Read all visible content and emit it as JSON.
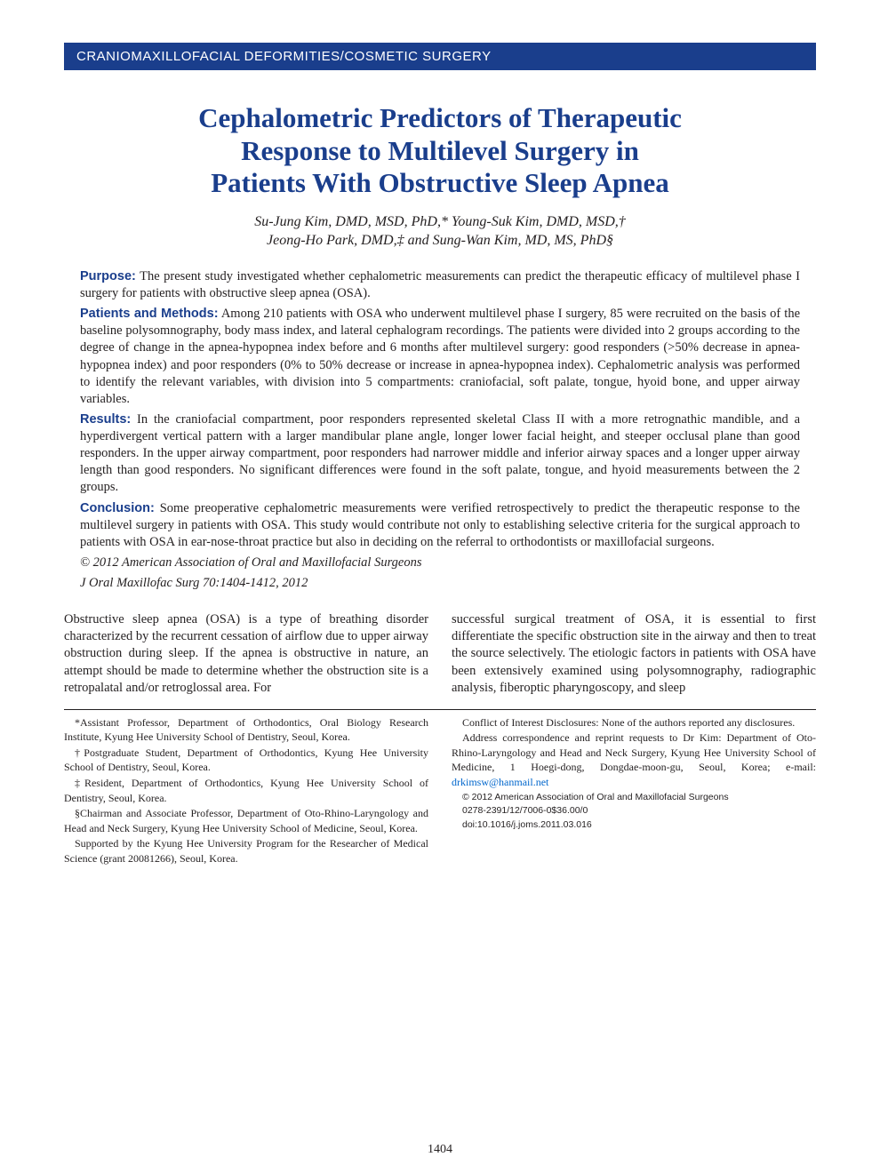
{
  "banner": "CRANIOMAXILLOFACIAL DEFORMITIES/COSMETIC SURGERY",
  "title_l1": "Cephalometric Predictors of Therapeutic",
  "title_l2": "Response to Multilevel Surgery in",
  "title_l3": "Patients With Obstructive Sleep Apnea",
  "authors_l1": "Su-Jung Kim, DMD, MSD, PhD,* Young-Suk Kim, DMD, MSD,†",
  "authors_l2": "Jeong-Ho Park, DMD,‡ and Sung-Wan Kim, MD, MS, PhD§",
  "abstract": {
    "purpose_label": "Purpose:",
    "purpose": "The present study investigated whether cephalometric measurements can predict the therapeutic efficacy of multilevel phase I surgery for patients with obstructive sleep apnea (OSA).",
    "methods_label": "Patients and Methods:",
    "methods": "Among 210 patients with OSA who underwent multilevel phase I surgery, 85 were recruited on the basis of the baseline polysomnography, body mass index, and lateral cephalogram recordings. The patients were divided into 2 groups according to the degree of change in the apnea-hypopnea index before and 6 months after multilevel surgery: good responders (>50% decrease in apnea-hypopnea index) and poor responders (0% to 50% decrease or increase in apnea-hypopnea index). Cephalometric analysis was performed to identify the relevant variables, with division into 5 compartments: craniofacial, soft palate, tongue, hyoid bone, and upper airway variables.",
    "results_label": "Results:",
    "results": "In the craniofacial compartment, poor responders represented skeletal Class II with a more retrognathic mandible, and a hyperdivergent vertical pattern with a larger mandibular plane angle, longer lower facial height, and steeper occlusal plane than good responders. In the upper airway compartment, poor responders had narrower middle and inferior airway spaces and a longer upper airway length than good responders. No significant differences were found in the soft palate, tongue, and hyoid measurements between the 2 groups.",
    "conclusion_label": "Conclusion:",
    "conclusion": "Some preoperative cephalometric measurements were verified retrospectively to predict the therapeutic response to the multilevel surgery in patients with OSA. This study would contribute not only to establishing selective criteria for the surgical approach to patients with OSA in ear-nose-throat practice but also in deciding on the referral to orthodontists or maxillofacial surgeons.",
    "copyright": "© 2012 American Association of Oral and Maxillofacial Surgeons",
    "citation": "J Oral Maxillofac Surg 70:1404-1412, 2012"
  },
  "body": {
    "left": "Obstructive sleep apnea (OSA) is a type of breathing disorder characterized by the recurrent cessation of airflow due to upper airway obstruction during sleep. If the apnea is obstructive in nature, an attempt should be made to determine whether the obstruction site is a retropalatal and/or retroglossal area. For",
    "right": "successful surgical treatment of OSA, it is essential to first differentiate the specific obstruction site in the airway and then to treat the source selectively. The etiologic factors in patients with OSA have been extensively examined using polysomnography, radiographic analysis, fiberoptic pharyngoscopy, and sleep"
  },
  "footnotes": {
    "left": [
      "*Assistant Professor, Department of Orthodontics, Oral Biology Research Institute, Kyung Hee University School of Dentistry, Seoul, Korea.",
      "†Postgraduate Student, Department of Orthodontics, Kyung Hee University School of Dentistry, Seoul, Korea.",
      "‡Resident, Department of Orthodontics, Kyung Hee University School of Dentistry, Seoul, Korea.",
      "§Chairman and Associate Professor, Department of Oto-Rhino-Laryngology and Head and Neck Surgery, Kyung Hee University School of Medicine, Seoul, Korea.",
      "Supported by the Kyung Hee University Program for the Researcher of Medical Science (grant 20081266), Seoul, Korea."
    ],
    "right_conflict": "Conflict of Interest Disclosures: None of the authors reported any disclosures.",
    "right_address_pre": "Address correspondence and reprint requests to Dr Kim: Department of Oto-Rhino-Laryngology and Head and Neck Surgery, Kyung Hee University School of Medicine, 1 Hoegi-dong, Dongdae-moon-gu, Seoul, Korea; e-mail: ",
    "right_email": "drkimsw@hanmail.net",
    "right_copyright": "© 2012 American Association of Oral and Maxillofacial Surgeons",
    "right_issn": "0278-2391/12/7006-0$36.00/0",
    "right_doi": "doi:10.1016/j.joms.2011.03.016"
  },
  "page_number": "1404",
  "colors": {
    "banner_bg": "#1a3e8c",
    "banner_text": "#ffffff",
    "title": "#1a3e8c",
    "body_text": "#231f20",
    "link": "#0066cc",
    "page_bg": "#ffffff"
  },
  "fonts": {
    "serif": "Garamond, Times New Roman, serif",
    "sans": "Arial, Helvetica, sans-serif",
    "title_size_pt": 23,
    "body_size_pt": 11,
    "footnote_size_pt": 9
  }
}
